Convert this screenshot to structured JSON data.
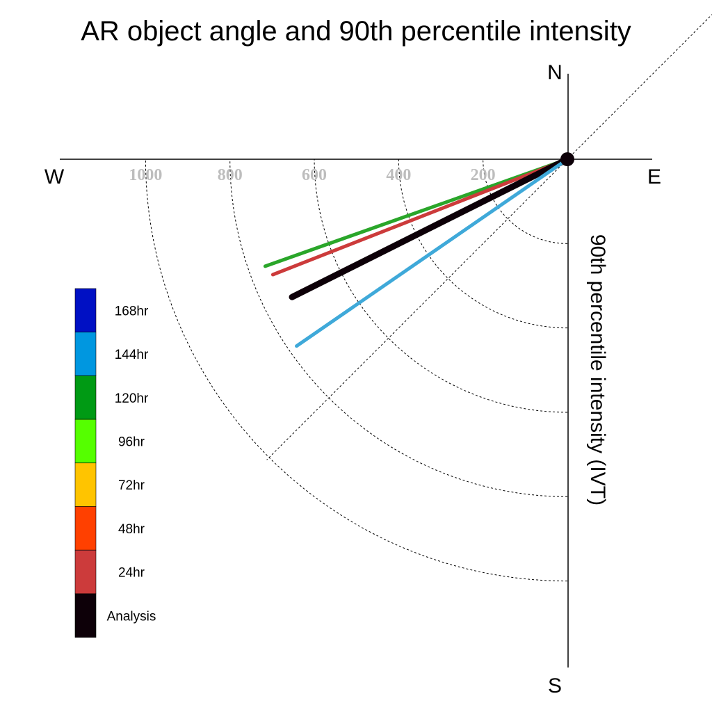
{
  "chart_data": {
    "type": "polar-vector",
    "title": "AR object angle and 90th percentile intensity",
    "ylabel": "90th percentile intensity (IVT)",
    "compass": {
      "north": "N",
      "south": "S",
      "east": "E",
      "west": "W"
    },
    "radial_ticks": [
      {
        "value": 200,
        "label": "200"
      },
      {
        "value": 400,
        "label": "400"
      },
      {
        "value": 600,
        "label": "600"
      },
      {
        "value": 800,
        "label": "800"
      },
      {
        "value": 1000,
        "label": "1000"
      }
    ],
    "rmax": 1200,
    "grid": true,
    "legend_position": "left",
    "legend": [
      {
        "label": "168hr",
        "color": "#0010c4"
      },
      {
        "label": "144hr",
        "color": "#0097e0"
      },
      {
        "label": "120hr",
        "color": "#009a14"
      },
      {
        "label": "96hr",
        "color": "#55ff00"
      },
      {
        "label": "72hr",
        "color": "#ffc400"
      },
      {
        "label": "48hr",
        "color": "#ff4000"
      },
      {
        "label": "24hr",
        "color": "#cc3b3b"
      },
      {
        "label": "Analysis",
        "color": "#0d0008"
      }
    ],
    "series": [
      {
        "name": "120hr",
        "angle_deg": 250.5,
        "value": 760,
        "color": "#2aa62a"
      },
      {
        "name": "24hr",
        "angle_deg": 248.6,
        "value": 750,
        "color": "#cc3b3b"
      },
      {
        "name": "Analysis",
        "angle_deg": 243.4,
        "value": 730,
        "color": "#0d0008"
      },
      {
        "name": "144hr",
        "angle_deg": 235.4,
        "value": 780,
        "color": "#3fa9d9"
      }
    ]
  }
}
